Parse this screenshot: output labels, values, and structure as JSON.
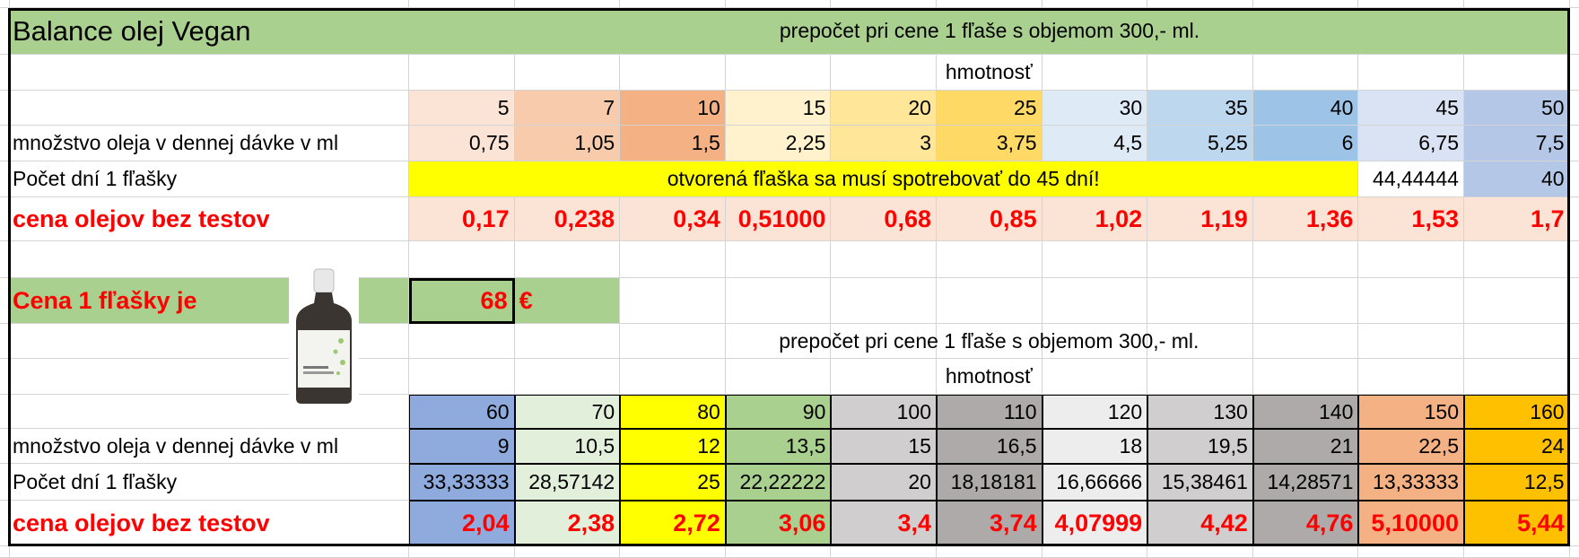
{
  "title": "Balance olej Vegan",
  "price": {
    "label": "Cena 1 fľašky je",
    "value": "68",
    "currency": "€"
  },
  "blocks": [
    {
      "header": "prepočet pri cene 1 fľaše s objemom 300,- ml.",
      "weight_label": "hmotnosť",
      "weights": [
        "5",
        "7",
        "10",
        "15",
        "20",
        "25",
        "30",
        "35",
        "40",
        "45",
        "50"
      ],
      "rows": [
        {
          "label": "množstvo oleja v dennej dávke v ml",
          "values": [
            "0,75",
            "1,05",
            "1,5",
            "2,25",
            "3",
            "3,75",
            "4,5",
            "5,25",
            "6",
            "6,75",
            "7,5"
          ]
        },
        {
          "label": "Počet dní 1 fľašky",
          "note": "otvorená fľaška sa musí spotrebovať do 45 dní!",
          "values": [
            "44,44444",
            "40"
          ]
        },
        {
          "label": "cena olejov bez testov",
          "values": [
            "0,17",
            "0,238",
            "0,34",
            "0,51000",
            "0,68",
            "0,85",
            "1,02",
            "1,19",
            "1,36",
            "1,53",
            "1,7"
          ]
        }
      ]
    },
    {
      "header": "prepočet pri cene 1 fľaše s objemom 300,- ml.",
      "weight_label": "hmotnosť",
      "weights": [
        "60",
        "70",
        "80",
        "90",
        "100",
        "110",
        "120",
        "130",
        "140",
        "150",
        "160"
      ],
      "rows": [
        {
          "label": "množstvo oleja v dennej dávke v ml",
          "values": [
            "9",
            "10,5",
            "12",
            "13,5",
            "15",
            "16,5",
            "18",
            "19,5",
            "21",
            "22,5",
            "24"
          ]
        },
        {
          "label": "Počet dní 1 fľašky",
          "values": [
            "33,33333",
            "28,57142",
            "25",
            "22,22222",
            "20",
            "18,18181",
            "16,66666",
            "15,38461",
            "14,28571",
            "13,33333",
            "12,5"
          ]
        },
        {
          "label": "cena olejov bez testov",
          "values": [
            "2,04",
            "2,38",
            "2,72",
            "3,06",
            "3,4",
            "3,74",
            "4,07999",
            "4,42",
            "4,76",
            "5,10000",
            "5,44"
          ]
        }
      ]
    }
  ]
}
